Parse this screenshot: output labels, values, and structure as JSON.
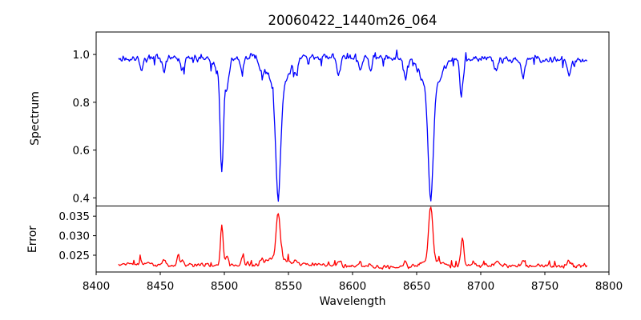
{
  "chart_data": {
    "type": "line",
    "title": "20060422_1440m26_064",
    "xlabel": "Wavelength",
    "xlim": [
      8400,
      8800
    ],
    "xticks": [
      8400,
      8450,
      8500,
      8550,
      8600,
      8650,
      8700,
      8750,
      8800
    ],
    "x_data_range": [
      8417.5,
      8783
    ],
    "grid": false,
    "legend": null,
    "background_color": "#ffffff",
    "axis_color": "#000000",
    "panels": [
      {
        "name": "spectrum",
        "ylabel": "Spectrum",
        "line_color": "#0000ff",
        "ylim": [
          0.366,
          1.094
        ],
        "yticks": [
          0.4,
          0.6,
          0.8,
          1.0
        ],
        "ytick_labels": [
          "0.4",
          "0.6",
          "0.8",
          "1.0"
        ],
        "continuum_level": 0.975,
        "noise_amplitude": 0.016,
        "absorption_lines": [
          {
            "center": 8498,
            "min_value": 0.51,
            "core_sigma": 1.2,
            "wing_depth": 0.08,
            "wing_sigma": 4
          },
          {
            "center": 8542,
            "min_value": 0.394,
            "core_sigma": 1.9,
            "wing_depth": 0.14,
            "wing_sigma": 7
          },
          {
            "center": 8661,
            "min_value": 0.394,
            "core_sigma": 1.9,
            "wing_depth": 0.14,
            "wing_sigma": 7
          }
        ],
        "minor_dips": [
          [
            8435,
            0.045
          ],
          [
            8453,
            0.05
          ],
          [
            8467,
            0.05
          ],
          [
            8502,
            0.085
          ],
          [
            8514,
            0.08
          ],
          [
            8529,
            0.05
          ],
          [
            8556,
            0.045
          ],
          [
            8589,
            0.07
          ],
          [
            8606,
            0.06
          ],
          [
            8614,
            0.05
          ],
          [
            8641,
            0.085
          ],
          [
            8685,
            0.145
          ],
          [
            8712,
            0.05
          ],
          [
            8733,
            0.08
          ],
          [
            8769,
            0.06
          ]
        ]
      },
      {
        "name": "error",
        "ylabel": "Error",
        "line_color": "#ff0000",
        "ylim": [
          0.0207,
          0.0376
        ],
        "yticks": [
          0.025,
          0.03,
          0.035
        ],
        "ytick_labels": [
          "0.025",
          "0.030",
          "0.035"
        ],
        "baseline": 0.0224,
        "noise_amplitude": 0.0007,
        "peaks": [
          {
            "center": 8498,
            "height": 0.0105,
            "sigma": 1.0
          },
          {
            "center": 8542,
            "height": 0.0112,
            "sigma": 1.5
          },
          {
            "center": 8542,
            "height": 0.0018,
            "sigma": 6
          },
          {
            "center": 8661,
            "height": 0.0138,
            "sigma": 1.5
          },
          {
            "center": 8661,
            "height": 0.002,
            "sigma": 6
          },
          {
            "center": 8686,
            "height": 0.0046,
            "sigma": 1.0
          },
          {
            "center": 8464,
            "height": 0.0028,
            "sigma": 0.8
          }
        ],
        "dip_error_scale": 0.02
      }
    ]
  }
}
